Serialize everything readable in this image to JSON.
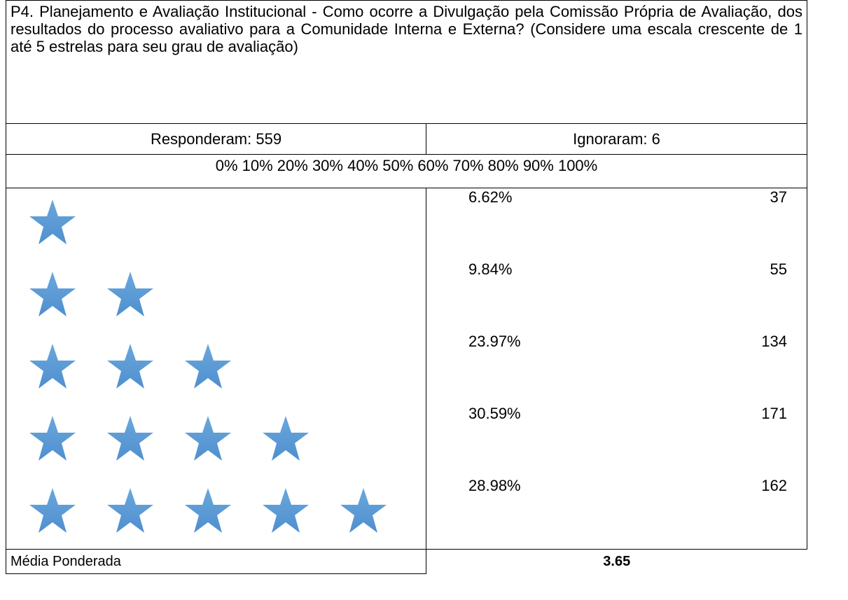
{
  "header": {
    "title": "P4. Planejamento e Avaliação Institucional - Como ocorre a Divulgação pela Comissão Própria de Avaliação, dos resultados do processo avaliativo para a Comunidade Interna e Externa? (Considere uma escala crescente de 1 até 5 estrelas para seu grau de avaliação)",
    "answered": "Responderam: 559",
    "skipped": "Ignoraram: 6"
  },
  "scale": "0% 10% 20% 30% 40% 50% 60% 70% 80% 90% 100%",
  "rows": [
    {
      "percent": "6.62%",
      "count": "37"
    },
    {
      "percent": "9.84%",
      "count": "55"
    },
    {
      "percent": "23.97%",
      "count": "134"
    },
    {
      "percent": "30.59%",
      "count": "171"
    },
    {
      "percent": "28.98%",
      "count": "162"
    }
  ],
  "footer": {
    "label": "Média Ponderada",
    "value": "3.65"
  }
}
